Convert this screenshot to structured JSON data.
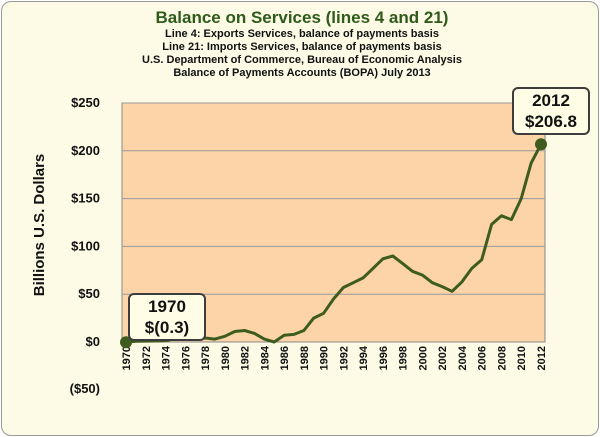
{
  "chart_data": {
    "type": "line",
    "title": "Balance on Services (lines 4 and 21)",
    "subtitles": [
      "Line 4:  Exports Services, balance of payments basis",
      "Line 21: Imports Services, balance of payments basis",
      "U.S. Department of Commerce, Bureau of Economic Analysis",
      "Balance of Payments Accounts (BOPA) July 2013"
    ],
    "ylabel": "Billions U.S. Dollars",
    "xlabel": "",
    "ylim": [
      -50,
      250
    ],
    "y_ticks": [
      "($50)",
      "$0",
      "$50",
      "$100",
      "$150",
      "$200",
      "$250"
    ],
    "y_tick_values": [
      -50,
      0,
      50,
      100,
      150,
      200,
      250
    ],
    "negative_tick_color": "#cc0000",
    "x_tick_labels": [
      "1970",
      "1972",
      "1974",
      "1976",
      "1978",
      "1980",
      "1982",
      "1984",
      "1986",
      "1988",
      "1990",
      "1992",
      "1994",
      "1996",
      "1998",
      "2000",
      "2002",
      "2004",
      "2006",
      "2008",
      "2010",
      "2012"
    ],
    "grid": true,
    "plot_background": "#fcd4a8",
    "line_color": "#3d5c1e",
    "series": [
      {
        "x": [
          1970,
          1971,
          1972,
          1973,
          1974,
          1975,
          1976,
          1977,
          1978,
          1979,
          1980,
          1981,
          1982,
          1983,
          1984,
          1985,
          1986,
          1987,
          1988,
          1989,
          1990,
          1991,
          1992,
          1993,
          1994,
          1995,
          1996,
          1997,
          1998,
          1999,
          2000,
          2001,
          2002,
          2003,
          2004,
          2005,
          2006,
          2007,
          2008,
          2009,
          2010,
          2011,
          2012
        ],
        "values": [
          -0.3,
          0.7,
          0.9,
          1,
          1.5,
          3.5,
          3.4,
          3.8,
          4.2,
          3,
          6,
          11,
          12,
          9,
          3,
          0,
          7,
          8,
          12,
          25,
          30,
          45,
          57,
          62,
          67,
          77,
          87,
          90,
          82,
          74,
          70,
          62,
          58,
          53,
          63,
          77,
          86,
          123,
          132,
          128,
          150,
          187,
          206.8
        ]
      }
    ],
    "annotations": [
      {
        "year": "1970",
        "value": "$(0.3)"
      },
      {
        "year": "2012",
        "value": "$206.8"
      }
    ]
  }
}
